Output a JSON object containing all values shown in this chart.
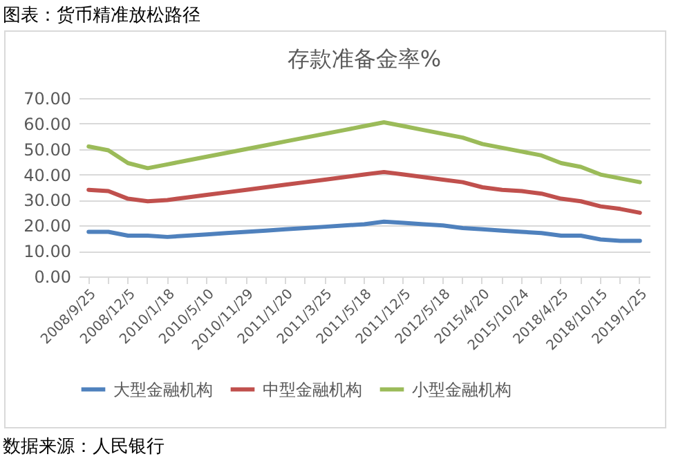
{
  "chart_data": {
    "type": "line",
    "title": "存款准备金率%",
    "annotations": [
      "图表：货币精准放松路径",
      "数据来源：人民银行"
    ],
    "categories": [
      "2008/9/25",
      null,
      "2008/12/5",
      null,
      "2010/1/18",
      null,
      "2010/5/10",
      null,
      "2010/11/29",
      null,
      "2011/1/20",
      null,
      "2011/3/25",
      null,
      "2011/5/18",
      null,
      "2011/12/5",
      null,
      "2012/5/18",
      null,
      "2015/4/20",
      null,
      "2015/10/24",
      null,
      "2018/4/25",
      null,
      "2018/10/15",
      null,
      "2019/1/25"
    ],
    "series": [
      {
        "name": "大型金融机构",
        "color": "#4f81bd",
        "values": [
          17.5,
          17.5,
          16,
          16,
          15.5,
          16,
          16.5,
          17,
          17.5,
          18,
          18.5,
          19,
          19.5,
          20,
          20.5,
          21.5,
          21,
          20.5,
          20,
          19,
          18.5,
          18,
          17.5,
          17,
          16,
          16,
          14.5,
          14,
          14
        ]
      },
      {
        "name": "中型金融机构",
        "color": "#c0504d",
        "values": [
          34,
          33.5,
          30.5,
          29.5,
          30,
          31,
          32,
          33,
          34,
          35,
          36,
          37,
          38,
          39,
          40,
          41,
          40,
          39,
          38,
          37,
          35,
          34,
          33.5,
          32.5,
          30.5,
          29.5,
          27.5,
          26.5,
          25
        ]
      },
      {
        "name": "小型金融机构",
        "color": "#9bbb59",
        "values": [
          51,
          49.5,
          44.5,
          42.5,
          44,
          45.5,
          47,
          48.5,
          50,
          51.5,
          53,
          54.5,
          56,
          57.5,
          59,
          60.5,
          59,
          57.5,
          56,
          54.5,
          52,
          50.5,
          49,
          47.5,
          44.5,
          43,
          40,
          38.5,
          37
        ]
      }
    ],
    "ylim": [
      0,
      70
    ],
    "yticks": [
      {
        "value": 0,
        "label": "0.00"
      },
      {
        "value": 10,
        "label": "10.00"
      },
      {
        "value": 20,
        "label": "20.00"
      },
      {
        "value": 30,
        "label": "30.00"
      },
      {
        "value": 40,
        "label": "40.00"
      },
      {
        "value": 50,
        "label": "50.00"
      },
      {
        "value": 60,
        "label": "60.00"
      },
      {
        "value": 70,
        "label": "70.00"
      }
    ],
    "grid": "y",
    "legend": "bottom",
    "marker": "none",
    "line_style": "solid"
  }
}
